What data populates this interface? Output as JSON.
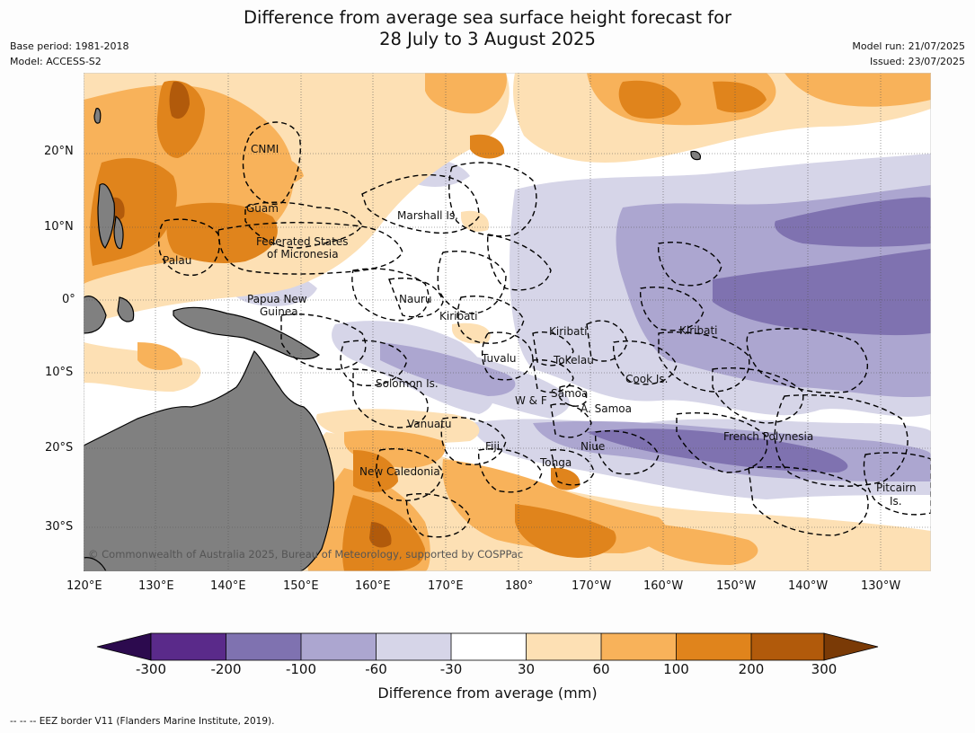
{
  "title": {
    "line1": "Difference from average sea surface height forecast for",
    "line2": "28 July to 3 August 2025"
  },
  "meta_left": {
    "base_period": "Base period: 1981-2018",
    "model": "Model: ACCESS-S2"
  },
  "meta_right": {
    "model_run": "Model run: 21/07/2025",
    "issued": "Issued: 23/07/2025"
  },
  "map": {
    "lon_range": [
      "120°E",
      "124°W (approx)"
    ],
    "lat_range": [
      "35°S",
      "30°N (approx)"
    ],
    "lat_ticks": [
      "20°N",
      "10°N",
      "0°",
      "10°S",
      "20°S",
      "30°S"
    ],
    "lon_ticks": [
      "120°E",
      "130°E",
      "140°E",
      "150°E",
      "160°E",
      "170°E",
      "180°",
      "170°W",
      "160°W",
      "150°W",
      "140°W",
      "130°W"
    ],
    "grid": true,
    "land_color": "#808080",
    "eez_border_style": "dashed black",
    "regions": [
      {
        "name": "CNMI"
      },
      {
        "name": "Guam"
      },
      {
        "name": "Marshall Is."
      },
      {
        "name": "Federated States"
      },
      {
        "name": "of Micronesia"
      },
      {
        "name": "Palau"
      },
      {
        "name": "Papua New"
      },
      {
        "name": "Guinea"
      },
      {
        "name": "Nauru"
      },
      {
        "name": "Kiribati"
      },
      {
        "name": "Kiribati"
      },
      {
        "name": "Kiribati"
      },
      {
        "name": "Tuvalu"
      },
      {
        "name": "Tokelau"
      },
      {
        "name": "Solomon Is."
      },
      {
        "name": "Cook Is."
      },
      {
        "name": "Samoa"
      },
      {
        "name": "W & F"
      },
      {
        "name": "A. Samoa"
      },
      {
        "name": "Vanuatu"
      },
      {
        "name": "Fiji"
      },
      {
        "name": "Niue"
      },
      {
        "name": "French Polynesia"
      },
      {
        "name": "Tonga"
      },
      {
        "name": "New Caledonia"
      },
      {
        "name": "Pitcairn"
      },
      {
        "name": "Is."
      }
    ],
    "copyright": "© Commonwealth of Australia 2025, Bureau of Meteorology, supported by COSPPac"
  },
  "colorbar": {
    "title": "Difference from average (mm)",
    "ticks": [
      "-300",
      "-200",
      "-100",
      "-60",
      "-30",
      "30",
      "60",
      "100",
      "200",
      "300"
    ],
    "colors": [
      "#2c0a4e",
      "#5a2a8a",
      "#7f72b0",
      "#aca6d0",
      "#d6d5e8",
      "#ffffff",
      "#fde0b4",
      "#f8b25a",
      "#e0841c",
      "#b15a0b",
      "#7a3a06"
    ]
  },
  "footnote": "--  --  -- EEZ border V11 (Flanders Marine Institute, 2019)."
}
